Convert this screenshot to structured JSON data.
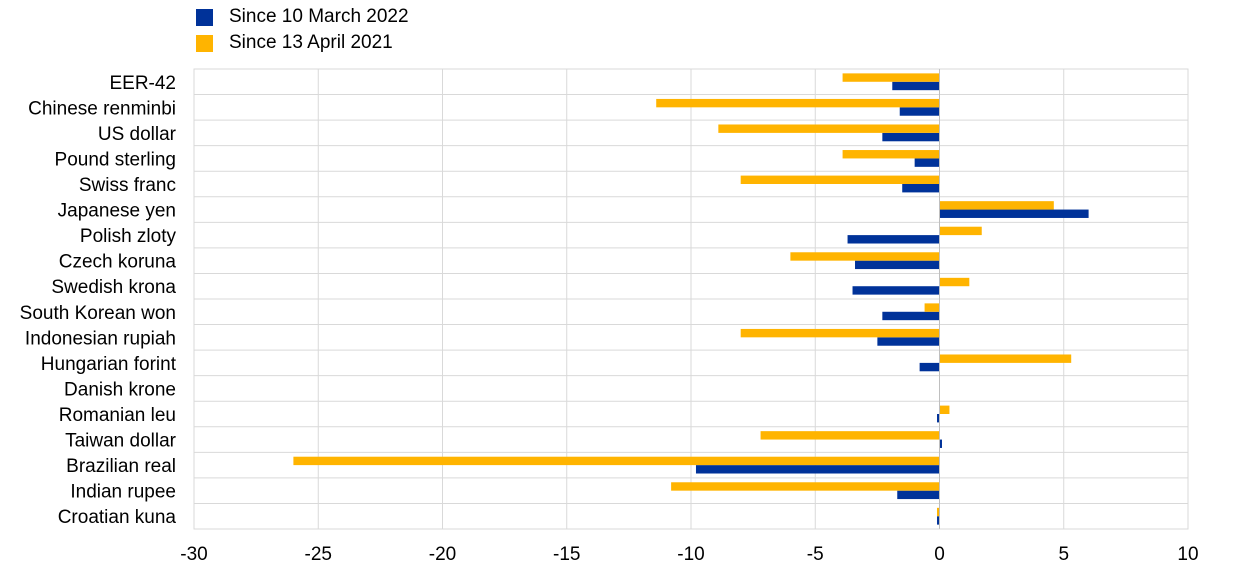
{
  "chart_data": {
    "type": "bar",
    "orientation": "horizontal",
    "categories": [
      "EER-42",
      "Chinese renminbi",
      "US dollar",
      "Pound sterling",
      "Swiss franc",
      "Japanese yen",
      "Polish zloty",
      "Czech koruna",
      "Swedish krona",
      "South Korean won",
      "Indonesian rupiah",
      "Hungarian forint",
      "Danish krone",
      "Romanian leu",
      "Taiwan dollar",
      "Brazilian real",
      "Indian rupee",
      "Croatian kuna"
    ],
    "series": [
      {
        "name": "Since 10 March 2022",
        "color": "#003299",
        "values": [
          -1.9,
          -1.6,
          -2.3,
          -1.0,
          -1.5,
          6.0,
          -3.7,
          -3.4,
          -3.5,
          -2.3,
          -2.5,
          -0.8,
          0.0,
          -0.1,
          0.1,
          -9.8,
          -1.7,
          -0.1
        ]
      },
      {
        "name": "Since 13 April 2021",
        "color": "#FFB400",
        "values": [
          -3.9,
          -11.4,
          -8.9,
          -3.9,
          -8.0,
          4.6,
          1.7,
          -6.0,
          1.2,
          -0.6,
          -8.0,
          5.3,
          0.0,
          0.4,
          -7.2,
          -26.0,
          -10.8,
          -0.1
        ]
      }
    ],
    "xlim": [
      -30,
      10
    ],
    "xticks": [
      "-30",
      "-25",
      "-20",
      "-15",
      "-10",
      "-5",
      "0",
      "5",
      "10"
    ],
    "grid": true,
    "legend_position": "top-left",
    "title": "",
    "xlabel": "",
    "ylabel": ""
  }
}
